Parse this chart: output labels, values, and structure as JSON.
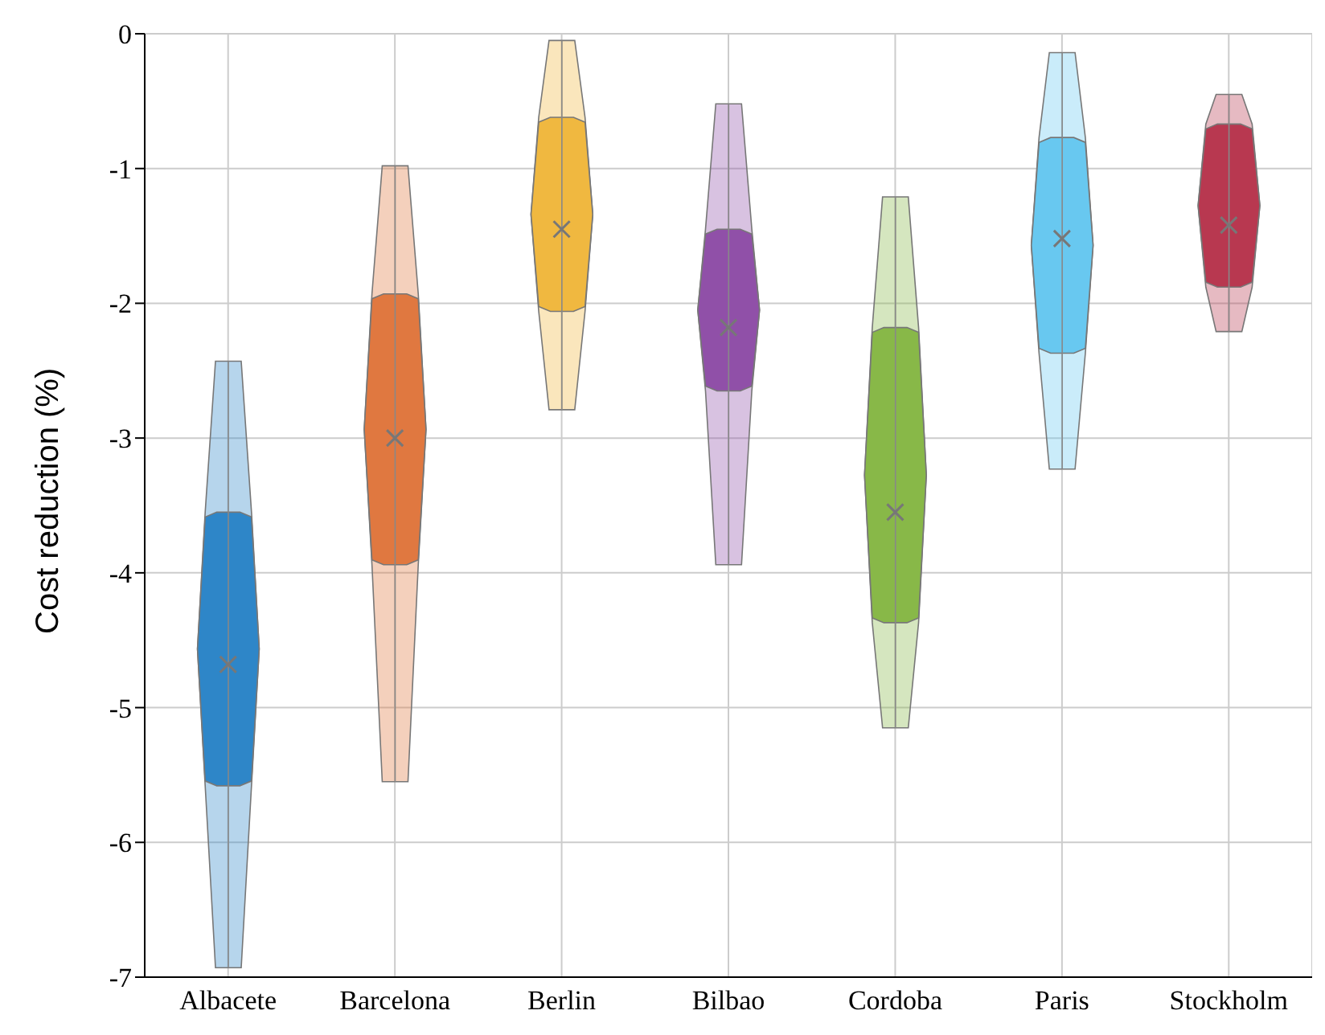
{
  "chart_data": {
    "type": "box",
    "ylabel": "Cost reduction (%)",
    "categories": [
      "Albacete",
      "Barcelona",
      "Berlin",
      "Bilbao",
      "Cordoba",
      "Paris",
      "Stockholm"
    ],
    "boxes": [
      {
        "low": -6.93,
        "q1": -5.58,
        "q3": -3.55,
        "high": -2.43,
        "mean": -4.68
      },
      {
        "low": -5.55,
        "q1": -3.94,
        "q3": -1.93,
        "high": -0.98,
        "mean": -3.0
      },
      {
        "low": -2.79,
        "q1": -2.06,
        "q3": -0.62,
        "high": -0.05,
        "mean": -1.45
      },
      {
        "low": -3.94,
        "q1": -2.65,
        "q3": -1.45,
        "high": -0.52,
        "mean": -2.18
      },
      {
        "low": -5.15,
        "q1": -4.37,
        "q3": -2.18,
        "high": -1.21,
        "mean": -3.55
      },
      {
        "low": -3.23,
        "q1": -2.37,
        "q3": -0.77,
        "high": -0.14,
        "mean": -1.52
      },
      {
        "low": -2.21,
        "q1": -1.88,
        "q3": -0.67,
        "high": -0.45,
        "mean": -1.42
      }
    ],
    "colors": [
      "#2e86c8",
      "#e07840",
      "#f0b840",
      "#9050a8",
      "#88b848",
      "#68c8f0",
      "#b83850"
    ],
    "ylim": [
      -7,
      0
    ],
    "yticks": [
      -7,
      -6,
      -5,
      -4,
      -3,
      -2,
      -1,
      0
    ],
    "grid": true
  }
}
